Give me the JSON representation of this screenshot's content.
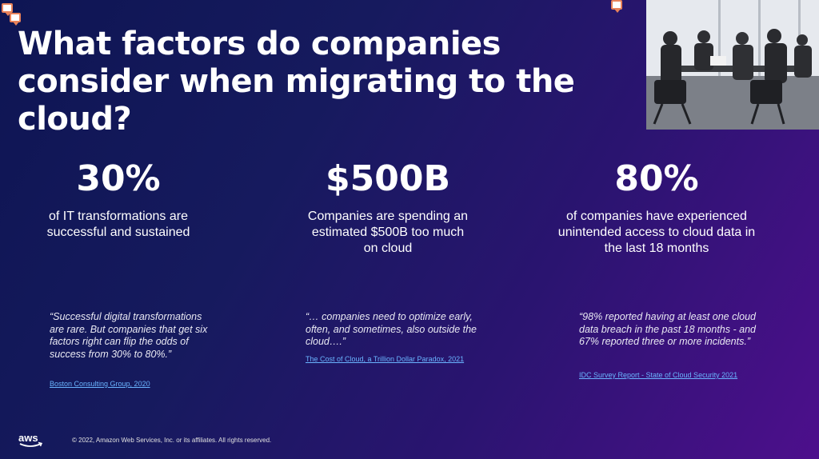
{
  "title": "What factors do companies consider when migrating to the cloud?",
  "stats": [
    {
      "value": "30%",
      "description": "of IT transformations are successful and sustained"
    },
    {
      "value": "$500B",
      "description": "Companies are spending an estimated $500B too much on cloud"
    },
    {
      "value": "80%",
      "description": "of companies have experienced unintended access to cloud data in the last 18 months"
    }
  ],
  "quotes": [
    {
      "text": "“Successful digital transformations are rare. But companies that get six factors right can flip the odds of success from 30% to 80%.”",
      "source": "Boston Consulting Group, 2020"
    },
    {
      "text": "“… companies need to optimize early, often, and sometimes, also outside the cloud….”",
      "source": "The Cost of Cloud, a Trillion Dollar Paradox, 2021"
    },
    {
      "text": "“98% reported having at least one cloud data breach in the past 18 months - and 67% reported three or more incidents.”",
      "source": "IDC Survey Report - State of Cloud Security 2021"
    }
  ],
  "logo": "aws",
  "footer": "© 2022, Amazon Web Services, Inc. or its affiliates. All rights reserved.",
  "colors": {
    "link": "#6ab4ff",
    "comment_icon": "#e8825a",
    "aws_smile": "#ffffff"
  }
}
